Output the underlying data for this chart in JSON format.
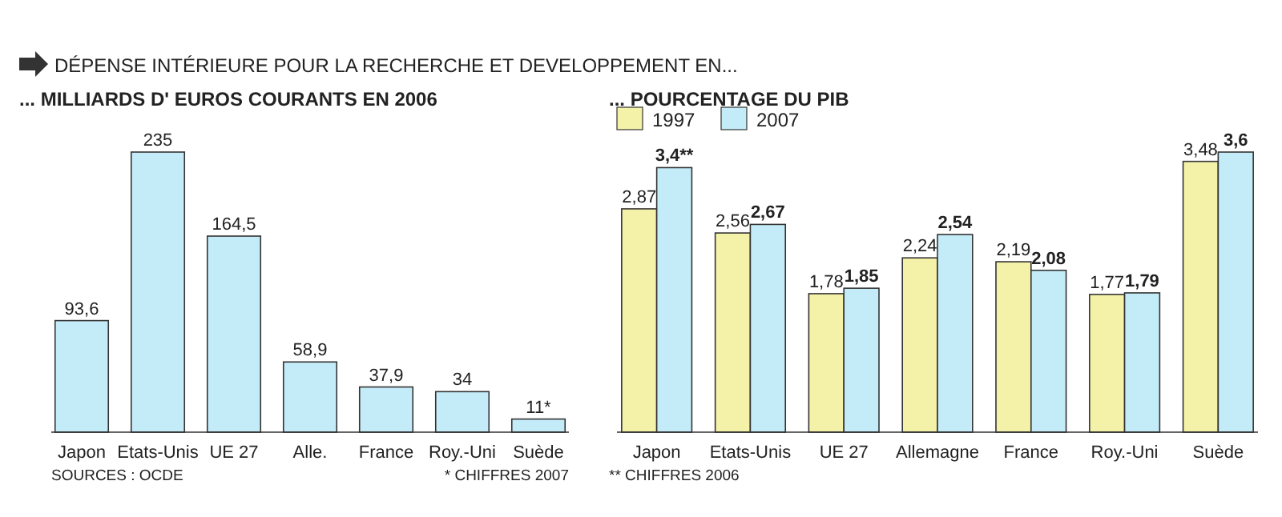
{
  "chart_data": [
    {
      "type": "bar",
      "title": "DÉPENSE INTÉRIEURE POUR LA RECHERCHE ET DEVELOPPEMENT EN...",
      "subtitle": "... MILLIARDS D' EUROS COURANTS EN 2006",
      "categories": [
        "Japon",
        "Etats-Unis",
        "UE 27",
        "Alle.",
        "France",
        "Roy.-Uni",
        "Suède"
      ],
      "values": [
        93.6,
        235,
        164.5,
        58.9,
        37.9,
        34,
        11
      ],
      "value_labels": [
        "93,6",
        "235",
        "164,5",
        "58,9",
        "37,9",
        "34",
        "11*"
      ],
      "color": "#c4ecf8",
      "annotations": [
        "SOURCES : OCDE",
        "* CHIFFRES 2007"
      ]
    },
    {
      "type": "bar",
      "title": "... POURCENTAGE DU PIB",
      "categories": [
        "Japon",
        "Etats-Unis",
        "UE 27",
        "Allemagne",
        "France",
        "Roy.-Uni",
        "Suède"
      ],
      "legend": "top left",
      "series": [
        {
          "name": "1997",
          "color": "#f4f2a8",
          "values": [
            2.87,
            2.56,
            1.78,
            2.24,
            2.19,
            1.77,
            3.48
          ],
          "value_labels": [
            "2,87",
            "2,56",
            "1,78",
            "2,24",
            "2,19",
            "1,77",
            "3,48"
          ]
        },
        {
          "name": "2007",
          "color": "#c4ecf8",
          "values": [
            3.4,
            2.67,
            1.85,
            2.54,
            2.08,
            1.79,
            3.6
          ],
          "value_labels": [
            "3,4**",
            "2,67",
            "1,85",
            "2,54",
            "2,08",
            "1,79",
            "3,6"
          ]
        }
      ],
      "annotations": [
        "** CHIFFRES 2006"
      ]
    }
  ]
}
